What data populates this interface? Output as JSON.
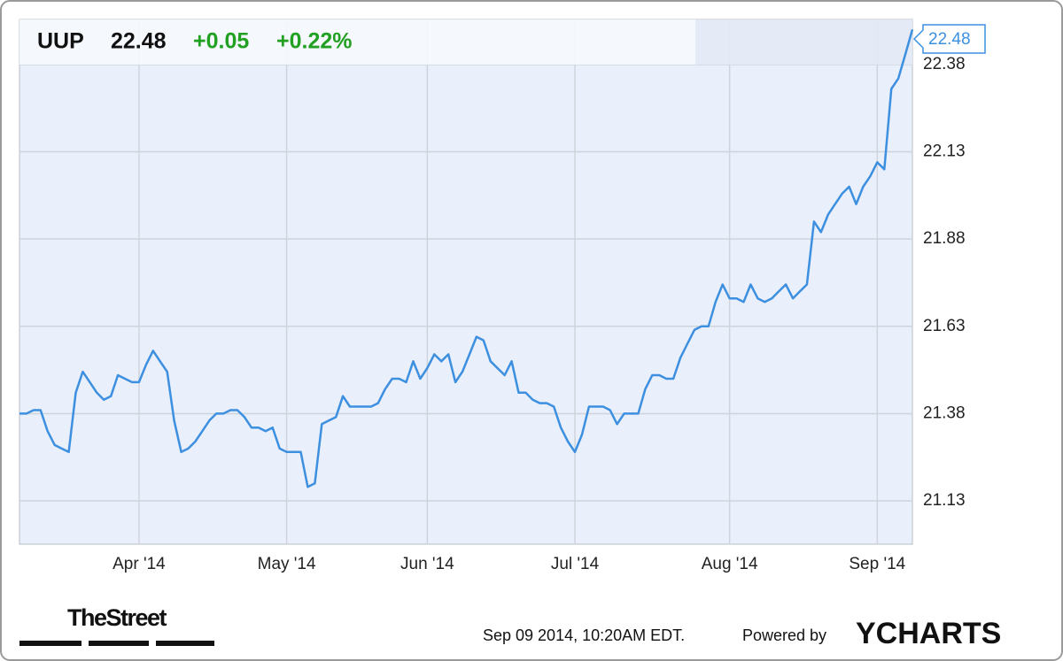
{
  "chart_data": {
    "type": "line",
    "header": {
      "ticker": "UUP",
      "price": "22.48",
      "change": "+0.05",
      "change_pct": "+0.22%"
    },
    "last_label": "22.48",
    "footer": {
      "brand": "TheStreet",
      "timestamp": "Sep 09 2014, 10:20AM EDT.",
      "powered": "Powered by",
      "provider": "YCHARTS"
    },
    "series": [
      {
        "name": "UUP",
        "color": "#3d8fe0",
        "values": [
          21.38,
          21.38,
          21.39,
          21.39,
          21.33,
          21.29,
          21.28,
          21.27,
          21.44,
          21.5,
          21.47,
          21.44,
          21.42,
          21.43,
          21.49,
          21.48,
          21.47,
          21.47,
          21.52,
          21.56,
          21.53,
          21.5,
          21.36,
          21.27,
          21.28,
          21.3,
          21.33,
          21.36,
          21.38,
          21.38,
          21.39,
          21.39,
          21.37,
          21.34,
          21.34,
          21.33,
          21.34,
          21.28,
          21.27,
          21.27,
          21.27,
          21.17,
          21.18,
          21.35,
          21.36,
          21.37,
          21.43,
          21.4,
          21.4,
          21.4,
          21.4,
          21.41,
          21.45,
          21.48,
          21.48,
          21.47,
          21.53,
          21.48,
          21.51,
          21.55,
          21.53,
          21.55,
          21.47,
          21.5,
          21.55,
          21.6,
          21.59,
          21.53,
          21.51,
          21.49,
          21.53,
          21.44,
          21.44,
          21.42,
          21.41,
          21.41,
          21.4,
          21.34,
          21.3,
          21.27,
          21.32,
          21.4,
          21.4,
          21.4,
          21.39,
          21.35,
          21.38,
          21.38,
          21.38,
          21.45,
          21.49,
          21.49,
          21.48,
          21.48,
          21.54,
          21.58,
          21.62,
          21.63,
          21.63,
          21.7,
          21.75,
          21.71,
          21.71,
          21.7,
          21.75,
          21.71,
          21.7,
          21.71,
          21.73,
          21.75,
          21.71,
          21.73,
          21.75,
          21.93,
          21.9,
          21.95,
          21.98,
          22.01,
          22.03,
          21.98,
          22.03,
          22.06,
          22.1,
          22.08,
          22.31,
          22.34,
          22.41,
          22.48
        ]
      }
    ],
    "xlim": [
      0,
      127
    ],
    "xticks": [
      {
        "value": 17,
        "label": "Apr '14"
      },
      {
        "value": 38,
        "label": "May '14"
      },
      {
        "value": 58,
        "label": "Jun '14"
      },
      {
        "value": 79,
        "label": "Jul '14"
      },
      {
        "value": 101,
        "label": "Aug '14"
      },
      {
        "value": 122,
        "label": "Sep '14"
      }
    ],
    "ylim": [
      21.006,
      22.509
    ],
    "yticks": [
      21.13,
      21.38,
      21.63,
      21.88,
      22.13,
      22.38
    ],
    "grid": true
  }
}
